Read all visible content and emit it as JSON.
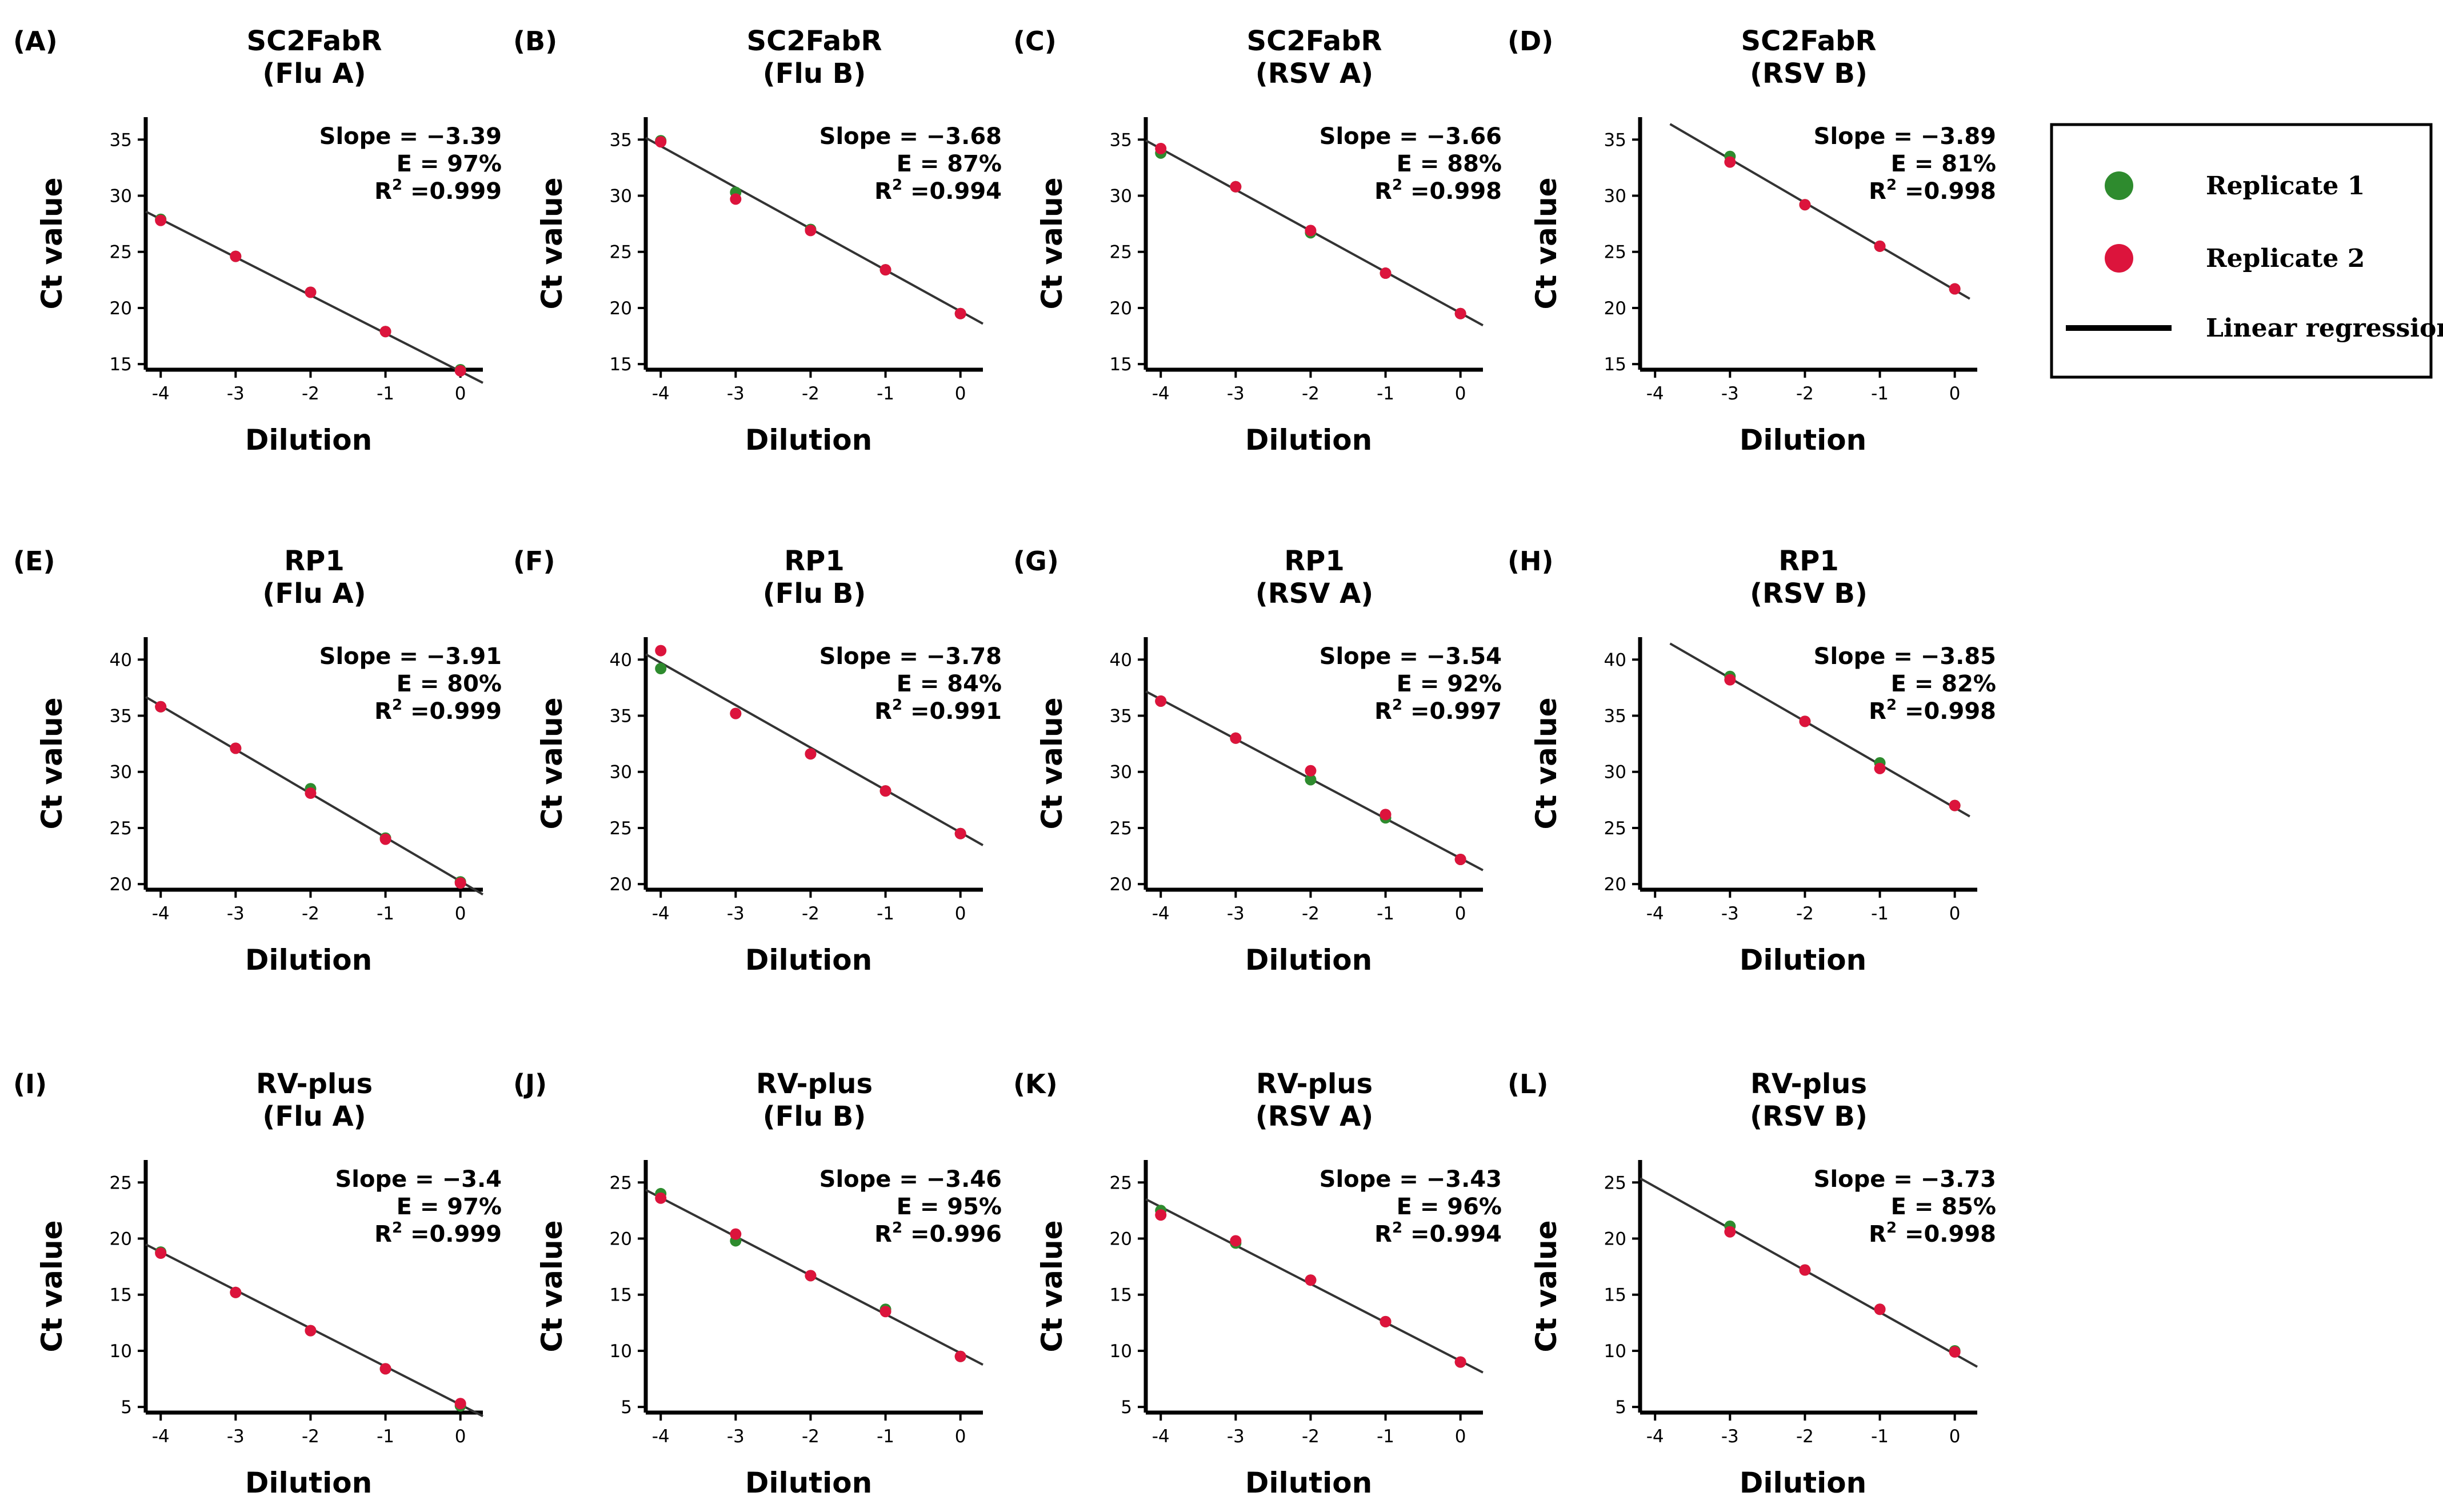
{
  "figure": {
    "stat_labels": {
      "slope": "Slope = ",
      "efficiency": "E = ",
      "r2_prefix": "R",
      "r2_sup": "2",
      "r2_eq": " ="
    },
    "x_tick_labels": [
      "-4",
      "-3",
      "-2",
      "-1",
      "0"
    ],
    "colors": {
      "replicate1": "#2e8b2e",
      "replicate2": "#dc143c",
      "line": "#333333",
      "axis": "#000000"
    }
  },
  "legend": {
    "items": [
      {
        "label": "Replicate 1",
        "type": "dot",
        "color": "#2e8b2e"
      },
      {
        "label": "Replicate 2",
        "type": "dot",
        "color": "#dc143c"
      },
      {
        "label": "Linear regression",
        "type": "line",
        "color": "#000000"
      }
    ]
  },
  "chart_data": [
    {
      "letter": "(A)",
      "title": "SC2FabR",
      "subtitle": "(Flu A)",
      "type": "scatter",
      "xlabel": "Dilution",
      "ylabel": "Ct value",
      "xlim": [
        -4.2,
        0.3
      ],
      "ylim": [
        14.5,
        37
      ],
      "yticks": [
        15,
        20,
        25,
        30,
        35
      ],
      "xticks": [
        -4,
        -3,
        -2,
        -1,
        0
      ],
      "slope": "−3.39",
      "efficiency": "97%",
      "r2": "0.999",
      "fit": {
        "slope": -3.39,
        "intercept": 14.35
      },
      "series": [
        {
          "name": "Replicate 1",
          "x": [
            -4,
            -3,
            -2,
            -1,
            0
          ],
          "y": [
            27.9,
            24.6,
            21.4,
            17.9,
            14.5
          ]
        },
        {
          "name": "Replicate 2",
          "x": [
            -4,
            -3,
            -2,
            -1,
            0
          ],
          "y": [
            27.8,
            24.6,
            21.4,
            17.9,
            14.4
          ]
        }
      ]
    },
    {
      "letter": "(B)",
      "title": "SC2FabR",
      "subtitle": "(Flu B)",
      "type": "scatter",
      "xlabel": "Dilution",
      "ylabel": "Ct value",
      "xlim": [
        -4.2,
        0.3
      ],
      "ylim": [
        14.5,
        37
      ],
      "yticks": [
        15,
        20,
        25,
        30,
        35
      ],
      "xticks": [
        -4,
        -3,
        -2,
        -1,
        0
      ],
      "slope": "−3.68",
      "efficiency": "87%",
      "r2": "0.994",
      "fit": {
        "slope": -3.68,
        "intercept": 19.7
      },
      "series": [
        {
          "name": "Replicate 1",
          "x": [
            -4,
            -3,
            -2,
            -1,
            0
          ],
          "y": [
            34.9,
            30.3,
            27.0,
            23.4,
            19.5
          ]
        },
        {
          "name": "Replicate 2",
          "x": [
            -4,
            -3,
            -2,
            -1,
            0
          ],
          "y": [
            34.8,
            29.7,
            26.9,
            23.4,
            19.5
          ]
        }
      ]
    },
    {
      "letter": "(C)",
      "title": "SC2FabR",
      "subtitle": "(RSV A)",
      "type": "scatter",
      "xlabel": "Dilution",
      "ylabel": "Ct value",
      "xlim": [
        -4.2,
        0.3
      ],
      "ylim": [
        14.5,
        37
      ],
      "yticks": [
        15,
        20,
        25,
        30,
        35
      ],
      "xticks": [
        -4,
        -3,
        -2,
        -1,
        0
      ],
      "slope": "−3.66",
      "efficiency": "88%",
      "r2": "0.998",
      "fit": {
        "slope": -3.66,
        "intercept": 19.55
      },
      "series": [
        {
          "name": "Replicate 1",
          "x": [
            -4,
            -3,
            -2,
            -1,
            0
          ],
          "y": [
            33.8,
            30.8,
            26.7,
            23.1,
            19.5
          ]
        },
        {
          "name": "Replicate 2",
          "x": [
            -4,
            -3,
            -2,
            -1,
            0
          ],
          "y": [
            34.2,
            30.8,
            26.9,
            23.1,
            19.5
          ]
        }
      ]
    },
    {
      "letter": "(D)",
      "title": "SC2FabR",
      "subtitle": "(RSV B)",
      "type": "scatter",
      "xlabel": "Dilution",
      "ylabel": "Ct value",
      "xlim": [
        -4.2,
        0.3
      ],
      "ylim": [
        14.5,
        37
      ],
      "yticks": [
        15,
        20,
        25,
        30,
        35
      ],
      "xticks": [
        -4,
        -3,
        -2,
        -1,
        0
      ],
      "slope": "−3.89",
      "efficiency": "81%",
      "r2": "0.998",
      "fit": {
        "slope": -3.89,
        "intercept": 21.6,
        "xrange": [
          -3.8,
          0.2
        ]
      },
      "series": [
        {
          "name": "Replicate 1",
          "x": [
            -3,
            -2,
            -1,
            0
          ],
          "y": [
            33.5,
            29.2,
            25.5,
            21.7
          ]
        },
        {
          "name": "Replicate 2",
          "x": [
            -3,
            -2,
            -1,
            0
          ],
          "y": [
            33.0,
            29.2,
            25.5,
            21.7
          ]
        }
      ]
    },
    {
      "letter": "(E)",
      "title": "RP1",
      "subtitle": "(Flu A)",
      "type": "scatter",
      "xlabel": "Dilution",
      "ylabel": "Ct value",
      "xlim": [
        -4.2,
        0.3
      ],
      "ylim": [
        19.5,
        42
      ],
      "yticks": [
        20,
        25,
        30,
        35,
        40
      ],
      "xticks": [
        -4,
        -3,
        -2,
        -1,
        0
      ],
      "slope": "−3.91",
      "efficiency": "80%",
      "r2": "0.999",
      "fit": {
        "slope": -3.91,
        "intercept": 20.25
      },
      "series": [
        {
          "name": "Replicate 1",
          "x": [
            -4,
            -3,
            -2,
            -1,
            0
          ],
          "y": [
            35.8,
            32.1,
            28.5,
            24.1,
            20.2
          ]
        },
        {
          "name": "Replicate 2",
          "x": [
            -4,
            -3,
            -2,
            -1,
            0
          ],
          "y": [
            35.8,
            32.1,
            28.1,
            24.0,
            20.1
          ]
        }
      ]
    },
    {
      "letter": "(F)",
      "title": "RP1",
      "subtitle": "(Flu B)",
      "type": "scatter",
      "xlabel": "Dilution",
      "ylabel": "Ct value",
      "xlim": [
        -4.2,
        0.3
      ],
      "ylim": [
        19.5,
        42
      ],
      "yticks": [
        20,
        25,
        30,
        35,
        40
      ],
      "xticks": [
        -4,
        -3,
        -2,
        -1,
        0
      ],
      "slope": "−3.78",
      "efficiency": "84%",
      "r2": "0.991",
      "fit": {
        "slope": -3.78,
        "intercept": 24.6
      },
      "series": [
        {
          "name": "Replicate 1",
          "x": [
            -4,
            -3,
            -2,
            -1,
            0
          ],
          "y": [
            39.2,
            35.2,
            31.6,
            28.3,
            24.5
          ]
        },
        {
          "name": "Replicate 2",
          "x": [
            -4,
            -3,
            -2,
            -1,
            0
          ],
          "y": [
            40.8,
            35.2,
            31.6,
            28.3,
            24.5
          ]
        }
      ]
    },
    {
      "letter": "(G)",
      "title": "RP1",
      "subtitle": "(RSV A)",
      "type": "scatter",
      "xlabel": "Dilution",
      "ylabel": "Ct value",
      "xlim": [
        -4.2,
        0.3
      ],
      "ylim": [
        19.5,
        42
      ],
      "yticks": [
        20,
        25,
        30,
        35,
        40
      ],
      "xticks": [
        -4,
        -3,
        -2,
        -1,
        0
      ],
      "slope": "−3.54",
      "efficiency": "92%",
      "r2": "0.997",
      "fit": {
        "slope": -3.54,
        "intercept": 22.3
      },
      "series": [
        {
          "name": "Replicate 1",
          "x": [
            -4,
            -3,
            -2,
            -1,
            0
          ],
          "y": [
            36.3,
            33.0,
            29.3,
            25.9,
            22.2
          ]
        },
        {
          "name": "Replicate 2",
          "x": [
            -4,
            -3,
            -2,
            -1,
            0
          ],
          "y": [
            36.3,
            33.0,
            30.1,
            26.2,
            22.2
          ]
        }
      ]
    },
    {
      "letter": "(H)",
      "title": "RP1",
      "subtitle": "(RSV B)",
      "type": "scatter",
      "xlabel": "Dilution",
      "ylabel": "Ct value",
      "xlim": [
        -4.2,
        0.3
      ],
      "ylim": [
        19.5,
        42
      ],
      "yticks": [
        20,
        25,
        30,
        35,
        40
      ],
      "xticks": [
        -4,
        -3,
        -2,
        -1,
        0
      ],
      "slope": "−3.85",
      "efficiency": "82%",
      "r2": "0.998",
      "fit": {
        "slope": -3.85,
        "intercept": 26.8,
        "xrange": [
          -3.8,
          0.2
        ]
      },
      "series": [
        {
          "name": "Replicate 1",
          "x": [
            -3,
            -2,
            -1,
            0
          ],
          "y": [
            38.5,
            34.5,
            30.8,
            27.0
          ]
        },
        {
          "name": "Replicate 2",
          "x": [
            -3,
            -2,
            -1,
            0
          ],
          "y": [
            38.2,
            34.5,
            30.3,
            27.0
          ]
        }
      ]
    },
    {
      "letter": "(I)",
      "title": "RV-plus",
      "subtitle": "(Flu A)",
      "type": "scatter",
      "xlabel": "Dilution",
      "ylabel": "Ct value",
      "xlim": [
        -4.2,
        0.3
      ],
      "ylim": [
        4.5,
        27
      ],
      "yticks": [
        5,
        10,
        15,
        20,
        25
      ],
      "xticks": [
        -4,
        -3,
        -2,
        -1,
        0
      ],
      "slope": "−3.4",
      "efficiency": "97%",
      "r2": "0.999",
      "fit": {
        "slope": -3.4,
        "intercept": 5.2
      },
      "series": [
        {
          "name": "Replicate 1",
          "x": [
            -4,
            -3,
            -2,
            -1,
            0
          ],
          "y": [
            18.8,
            15.2,
            11.8,
            8.4,
            5.1
          ]
        },
        {
          "name": "Replicate 2",
          "x": [
            -4,
            -3,
            -2,
            -1,
            0
          ],
          "y": [
            18.7,
            15.2,
            11.8,
            8.4,
            5.3
          ]
        }
      ]
    },
    {
      "letter": "(J)",
      "title": "RV-plus",
      "subtitle": "(Flu B)",
      "type": "scatter",
      "xlabel": "Dilution",
      "ylabel": "Ct value",
      "xlim": [
        -4.2,
        0.3
      ],
      "ylim": [
        4.5,
        27
      ],
      "yticks": [
        5,
        10,
        15,
        20,
        25
      ],
      "xticks": [
        -4,
        -3,
        -2,
        -1,
        0
      ],
      "slope": "−3.46",
      "efficiency": "95%",
      "r2": "0.996",
      "fit": {
        "slope": -3.46,
        "intercept": 9.8
      },
      "series": [
        {
          "name": "Replicate 1",
          "x": [
            -4,
            -3,
            -2,
            -1,
            0
          ],
          "y": [
            24.0,
            19.8,
            16.7,
            13.7,
            9.5
          ]
        },
        {
          "name": "Replicate 2",
          "x": [
            -4,
            -3,
            -2,
            -1,
            0
          ],
          "y": [
            23.6,
            20.4,
            16.7,
            13.5,
            9.5
          ]
        }
      ]
    },
    {
      "letter": "(K)",
      "title": "RV-plus",
      "subtitle": "(RSV A)",
      "type": "scatter",
      "xlabel": "Dilution",
      "ylabel": "Ct value",
      "xlim": [
        -4.2,
        0.3
      ],
      "ylim": [
        4.5,
        27
      ],
      "yticks": [
        5,
        10,
        15,
        20,
        25
      ],
      "xticks": [
        -4,
        -3,
        -2,
        -1,
        0
      ],
      "slope": "−3.43",
      "efficiency": "96%",
      "r2": "0.994",
      "fit": {
        "slope": -3.43,
        "intercept": 9.1
      },
      "series": [
        {
          "name": "Replicate 1",
          "x": [
            -4,
            -3,
            -2,
            -1,
            0
          ],
          "y": [
            22.5,
            19.6,
            16.3,
            12.6,
            9.0
          ]
        },
        {
          "name": "Replicate 2",
          "x": [
            -4,
            -3,
            -2,
            -1,
            0
          ],
          "y": [
            22.1,
            19.8,
            16.3,
            12.6,
            9.0
          ]
        }
      ]
    },
    {
      "letter": "(L)",
      "title": "RV-plus",
      "subtitle": "(RSV B)",
      "type": "scatter",
      "xlabel": "Dilution",
      "ylabel": "Ct value",
      "xlim": [
        -4.2,
        0.3
      ],
      "ylim": [
        4.5,
        27
      ],
      "yticks": [
        5,
        10,
        15,
        20,
        25
      ],
      "xticks": [
        -4,
        -3,
        -2,
        -1,
        0
      ],
      "slope": "−3.73",
      "efficiency": "85%",
      "r2": "0.998",
      "fit": {
        "slope": -3.73,
        "intercept": 9.7
      },
      "series": [
        {
          "name": "Replicate 1",
          "x": [
            -3,
            -2,
            -1,
            0
          ],
          "y": [
            21.1,
            17.2,
            13.7,
            10.0
          ]
        },
        {
          "name": "Replicate 2",
          "x": [
            -3,
            -2,
            -1,
            0
          ],
          "y": [
            20.6,
            17.2,
            13.7,
            9.9
          ]
        }
      ]
    }
  ]
}
